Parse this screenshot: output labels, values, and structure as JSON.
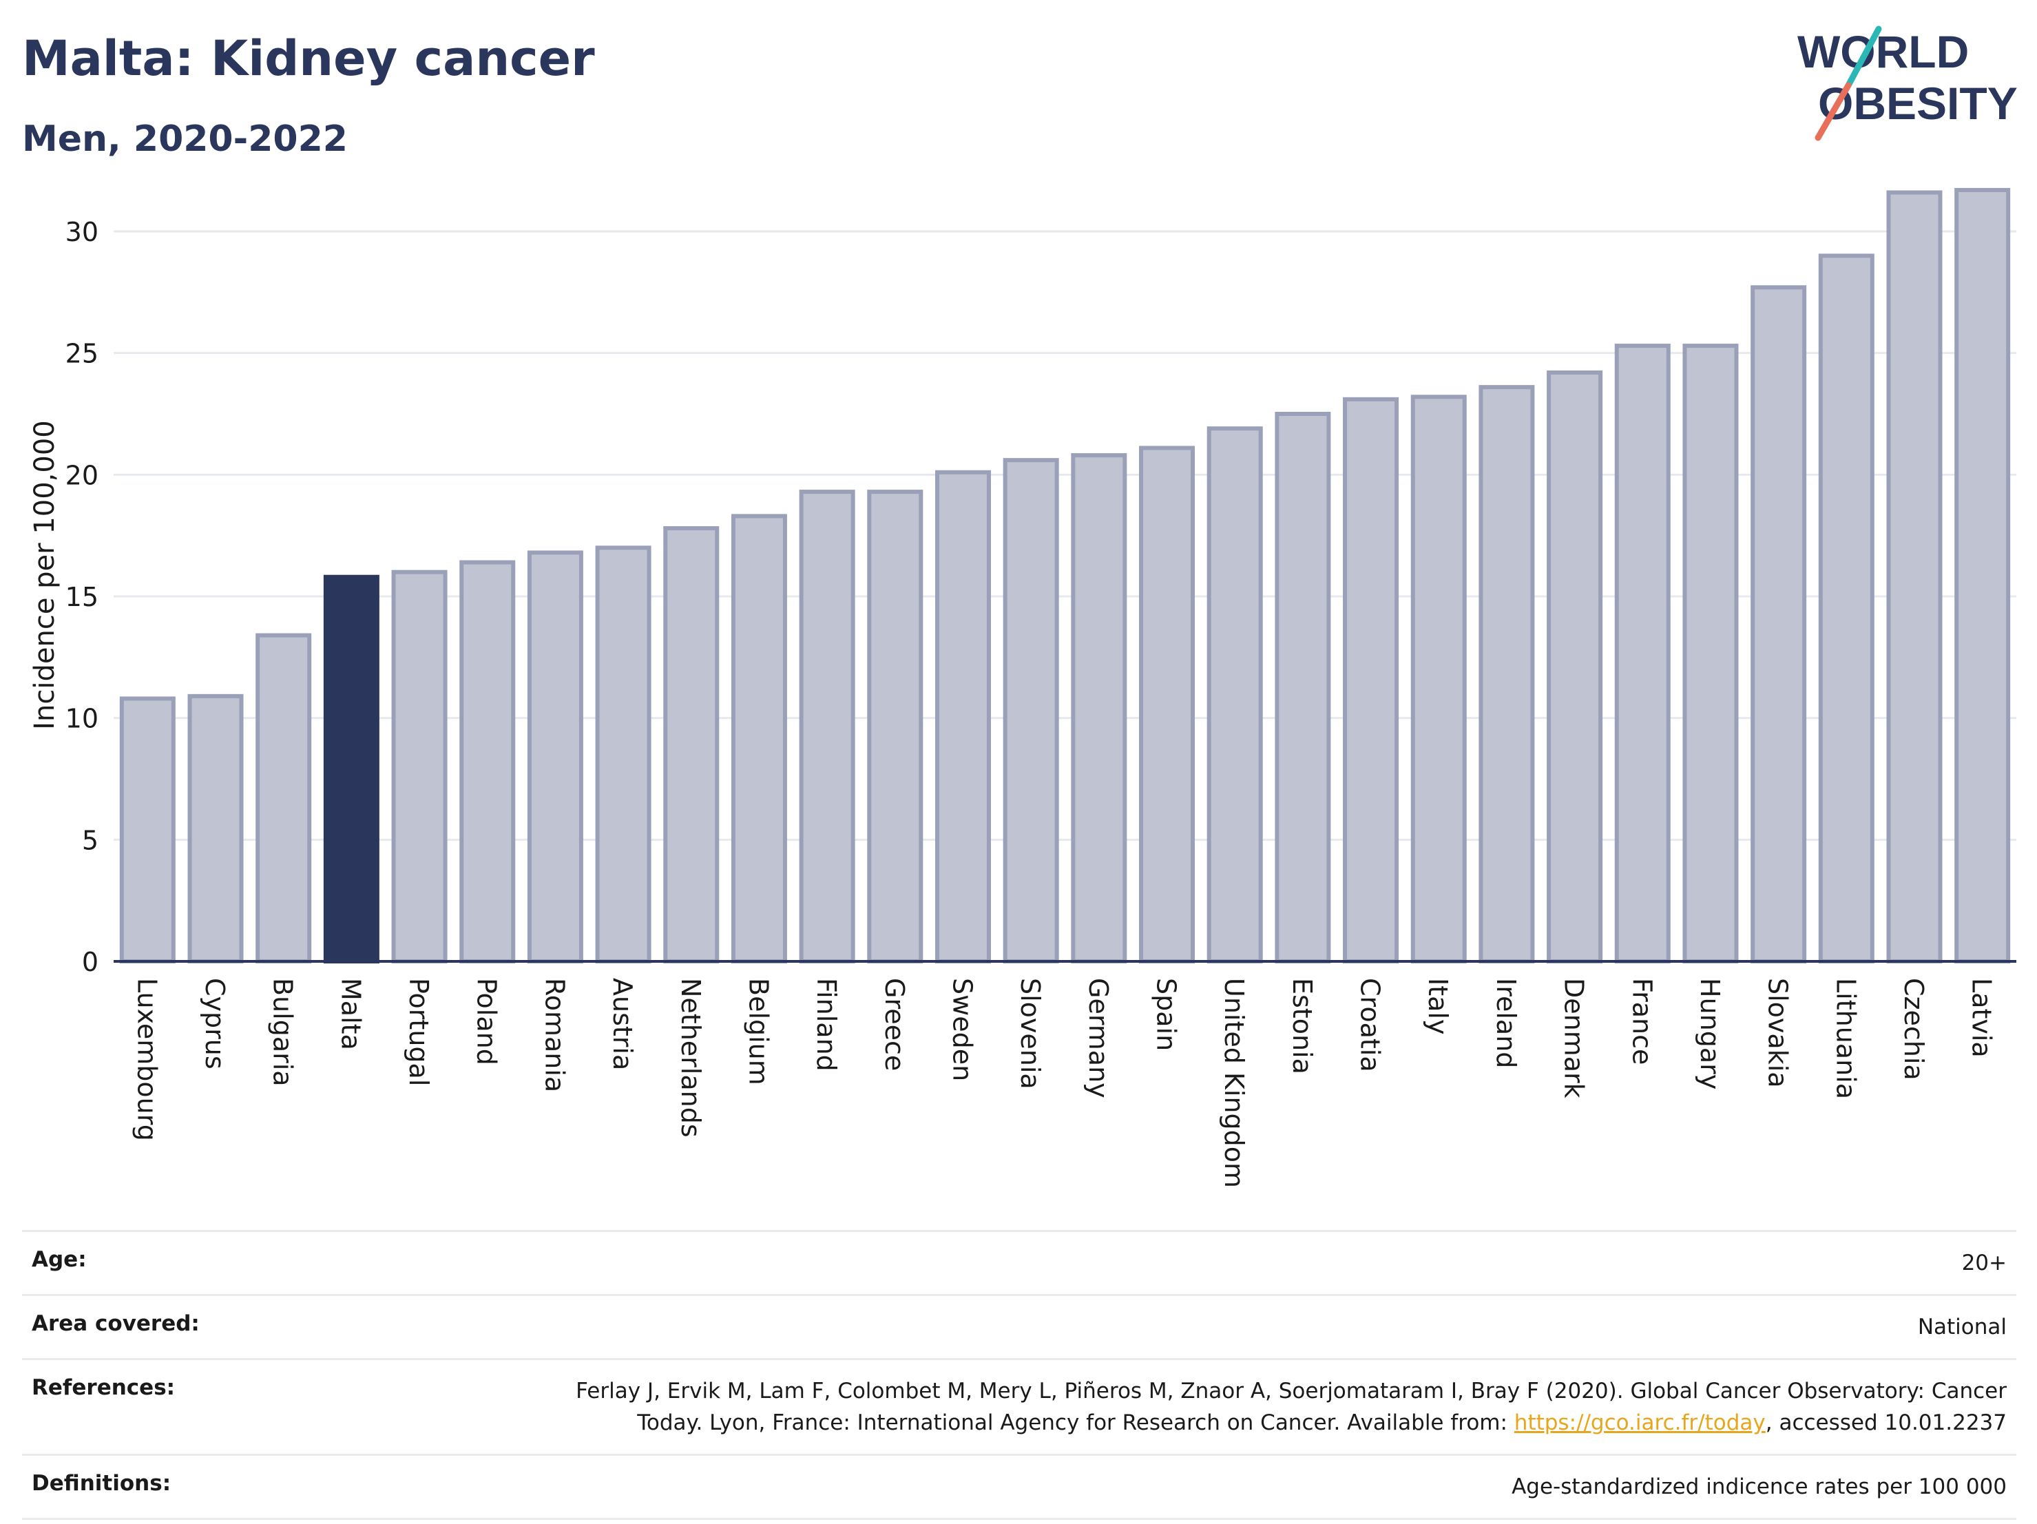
{
  "header": {
    "title": "Malta: Kidney cancer",
    "subtitle": "Men, 2020-2022"
  },
  "logo": {
    "line1": "WORLD",
    "line2": "OBESITY"
  },
  "colors": {
    "highlight": "#2b365d",
    "bar_fill": "#c0c3d1",
    "bar_edge": "#9aa0b8",
    "title": "#2b365d",
    "link": "#e6a71d",
    "logo_teal": "#2ab7b5",
    "logo_coral": "#e8705a"
  },
  "chart_data": {
    "type": "bar",
    "ylabel": "Incidence per 100,000",
    "ylim": [
      0,
      33
    ],
    "yticks": [
      0,
      5,
      10,
      15,
      20,
      25,
      30
    ],
    "grid": true,
    "highlight": "Malta",
    "categories": [
      "Luxembourg",
      "Cyprus",
      "Bulgaria",
      "Malta",
      "Portugal",
      "Poland",
      "Romania",
      "Austria",
      "Netherlands",
      "Belgium",
      "Finland",
      "Greece",
      "Sweden",
      "Slovenia",
      "Germany",
      "Spain",
      "United Kingdom",
      "Estonia",
      "Croatia",
      "Italy",
      "Ireland",
      "Denmark",
      "France",
      "Hungary",
      "Slovakia",
      "Lithuania",
      "Czechia",
      "Latvia"
    ],
    "values": [
      10.8,
      10.9,
      13.4,
      15.8,
      16.0,
      16.4,
      16.8,
      17.0,
      17.8,
      18.3,
      19.3,
      19.3,
      20.1,
      20.6,
      20.8,
      21.1,
      21.9,
      22.5,
      23.1,
      23.2,
      23.6,
      24.2,
      25.3,
      25.3,
      27.7,
      29.0,
      31.6,
      31.7
    ]
  },
  "meta": {
    "age_label": "Age:",
    "age_value": "20+",
    "area_label": "Area covered:",
    "area_value": "National",
    "references_label": "References:",
    "references_line1": "Ferlay J, Ervik M, Lam F, Colombet M, Mery L, Piñeros M, Znaor A, Soerjomataram I, Bray F (2020). Global Cancer Observatory: Cancer",
    "references_line2_pre": "Today. Lyon, France: International Agency for Research on Cancer. Available from: ",
    "references_link": "https://gco.iarc.fr/today",
    "references_line2_post": ", accessed 10.01.2237",
    "definitions_label": "Definitions:",
    "definitions_value": "Age-standardized indicence rates per 100 000"
  }
}
